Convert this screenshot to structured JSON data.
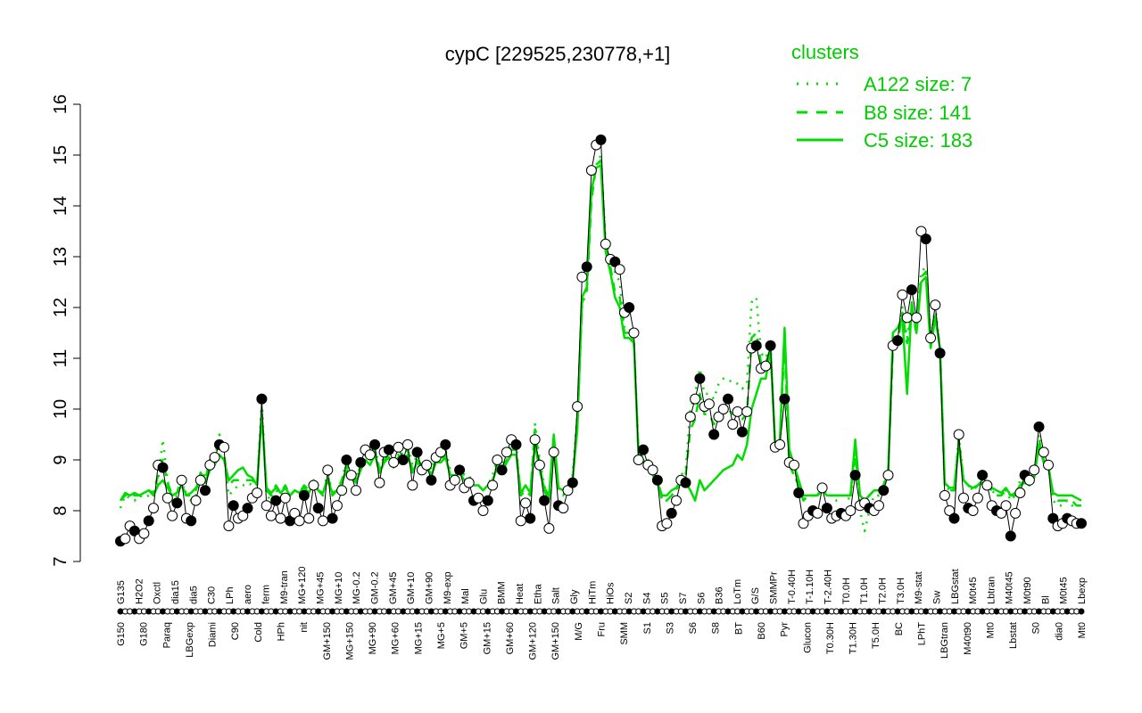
{
  "chart_data": {
    "type": "line",
    "title": "cypC [229525,230778,+1]",
    "xlabel": "",
    "ylabel": "",
    "ylim": [
      7,
      16
    ],
    "y_ticks": [
      7,
      8,
      9,
      10,
      11,
      12,
      13,
      14,
      15,
      16
    ],
    "grid": false,
    "legend_placement": "top-right",
    "legend": {
      "title": "clusters",
      "items": [
        {
          "label": "A122 size: 7",
          "style": "dotted"
        },
        {
          "label": "B8 size: 141",
          "style": "dashed"
        },
        {
          "label": "C5 size: 183",
          "style": "solid"
        }
      ]
    },
    "colors": {
      "clusters": "#00dd00",
      "gene": "#000000",
      "point_fill_open": "#ffffff",
      "point_fill_filled": "#000000"
    },
    "x_tick_labels_top_row": [
      "G135",
      "H2O2",
      "Oxctl",
      "dia15",
      "dia5",
      "C30",
      "LPh",
      "aero",
      "ferm",
      "M9-tran",
      "MG+120",
      "MG+45",
      "MG+10",
      "MG-0.2",
      "GM-0.2",
      "GM+45",
      "GM+10",
      "GM+90",
      "M9-exp",
      "Mal",
      "Glu",
      "BMM",
      "Heat",
      "Etha",
      "Salt",
      "Gly",
      "HiTm",
      "HiOs",
      "S2",
      "S4",
      "S5",
      "S7",
      "S6",
      "B36",
      "LoTm",
      "G/S",
      "SMMPr",
      "T-0.40H",
      "T-1.10H",
      "T-2.40H",
      "T0.0H",
      "T1.0H",
      "T2.0H",
      "T3.0H",
      "M9-stat",
      "Sw",
      "LBGstat",
      "M0t45",
      "Lbtran",
      "M40t45",
      "M0t90",
      "Bl",
      "M0t45",
      "Lbexp"
    ],
    "x_tick_labels_bottom_row": [
      "G150",
      "G180",
      "Paraq",
      "LBGexp",
      "Diami",
      "C90",
      "Cold",
      "HPh",
      "nit",
      "GM+150",
      "MG+150",
      "MG+90",
      "MG+60",
      "MG+15",
      "MG+5",
      "GM+5",
      "GM+15",
      "GM+60",
      "GM+120",
      "GM+150",
      "M/G",
      "Fru",
      "SMM",
      "S1",
      "S3",
      "S6",
      "S8",
      "BT",
      "B60",
      "Pyr",
      "Glucon",
      "T0.30H",
      "T1.30H",
      "T5.0H",
      "BC",
      "LPhT",
      "LBGtran",
      "M40t90",
      "Mt0",
      "Lbstat",
      "S0",
      "dia0",
      "Mt0"
    ],
    "series": [
      {
        "name": "cypC",
        "values": [
          7.4,
          7.45,
          7.7,
          7.6,
          7.45,
          7.55,
          7.8,
          8.05,
          8.9,
          8.85,
          8.25,
          7.9,
          8.15,
          8.6,
          7.85,
          7.8,
          8.2,
          8.6,
          8.4,
          8.9,
          9.05,
          9.3,
          9.25,
          7.7,
          8.1,
          7.85,
          7.9,
          8.05,
          8.25,
          8.35,
          10.2,
          8.1,
          7.9,
          8.2,
          7.85,
          8.25,
          7.8,
          7.95,
          7.8,
          8.3,
          7.85,
          8.5,
          8.05,
          7.8,
          8.8,
          7.85,
          8.1,
          8.4,
          9.0,
          8.7,
          8.4,
          8.95,
          9.2,
          9.1,
          9.3,
          8.55,
          9.15,
          9.2,
          8.95,
          9.25,
          9.0,
          9.3,
          8.5,
          9.15,
          8.8,
          8.9,
          8.6,
          9.05,
          9.15,
          9.3,
          8.5,
          8.6,
          8.8,
          8.45,
          8.55,
          8.2,
          8.25,
          8.0,
          8.2,
          8.5,
          9.0,
          8.8,
          9.15,
          9.4,
          9.3,
          7.8,
          8.15,
          7.85,
          9.4,
          8.9,
          8.2,
          7.65,
          9.15,
          8.1,
          8.05,
          8.4,
          8.55,
          10.05,
          12.6,
          12.8,
          14.7,
          15.2,
          15.3,
          13.25,
          12.95,
          12.9,
          12.75,
          11.9,
          12.0,
          11.5,
          9.0,
          9.2,
          8.9,
          8.8,
          8.6,
          7.7,
          7.75,
          7.95,
          8.2,
          8.6,
          8.55,
          9.85,
          10.2,
          10.6,
          10.05,
          10.1,
          9.5,
          9.85,
          10.0,
          10.2,
          9.7,
          9.95,
          9.55,
          9.95,
          11.2,
          11.25,
          10.8,
          10.85,
          11.25,
          9.25,
          9.3,
          10.2,
          8.95,
          8.9,
          8.35,
          7.75,
          7.9,
          8.0,
          7.95,
          8.45,
          8.05,
          7.85,
          7.9,
          7.95,
          7.9,
          8.0,
          8.7,
          8.1,
          8.15,
          8.05,
          8.0,
          8.1,
          8.4,
          8.7,
          11.25,
          11.35,
          12.25,
          11.8,
          12.35,
          11.8,
          13.5,
          13.35,
          11.4,
          12.05,
          11.1,
          8.3,
          8.0,
          7.85,
          9.5,
          8.25,
          8.05,
          8.0,
          8.25,
          8.7,
          8.5,
          8.1,
          8.0,
          7.95,
          8.1,
          7.5,
          7.95,
          8.35,
          8.7,
          8.6,
          8.8,
          9.65,
          9.15,
          8.9,
          7.85,
          7.7,
          7.75,
          7.85,
          7.8,
          7.75,
          7.75
        ]
      },
      {
        "name": "A122 size: 7",
        "values": [
          8.05,
          8.3,
          8.25,
          8.2,
          8.3,
          8.25,
          8.3,
          8.35,
          8.6,
          9.4,
          8.6,
          8.2,
          8.3,
          8.6,
          8.25,
          8.2,
          8.3,
          8.7,
          8.7,
          9.0,
          9.0,
          9.5,
          9.1,
          8.3,
          8.4,
          8.5,
          8.5,
          8.55,
          8.5,
          8.4,
          10.2,
          8.3,
          8.2,
          8.4,
          8.3,
          8.45,
          8.3,
          8.4,
          8.35,
          8.5,
          8.4,
          8.6,
          8.4,
          8.3,
          8.8,
          8.3,
          8.4,
          8.6,
          9.0,
          8.8,
          8.6,
          9.0,
          9.2,
          9.1,
          9.3,
          8.8,
          9.1,
          9.2,
          9.0,
          9.2,
          9.1,
          9.3,
          8.9,
          9.1,
          8.9,
          9.0,
          8.8,
          9.1,
          9.1,
          9.2,
          8.8,
          8.8,
          8.9,
          8.7,
          8.7,
          8.5,
          8.5,
          8.4,
          8.5,
          8.7,
          9.0,
          8.9,
          9.1,
          9.3,
          9.3,
          8.3,
          8.5,
          8.3,
          9.7,
          9.0,
          8.5,
          8.2,
          9.2,
          8.4,
          8.4,
          8.5,
          8.7,
          9.9,
          12.0,
          12.4,
          14.2,
          14.8,
          15.0,
          13.3,
          13.0,
          12.7,
          12.5,
          11.6,
          11.6,
          11.3,
          9.2,
          9.2,
          9.0,
          8.9,
          8.7,
          8.2,
          8.2,
          8.3,
          8.4,
          8.7,
          8.8,
          10.0,
          10.3,
          10.8,
          10.3,
          10.3,
          10.2,
          10.5,
          10.6,
          10.6,
          10.5,
          10.5,
          10.4,
          10.5,
          12.1,
          12.2,
          11.1,
          11.0,
          11.3,
          9.3,
          9.4,
          11.5,
          8.9,
          8.7,
          8.5,
          8.2,
          8.3,
          8.3,
          8.3,
          8.5,
          8.3,
          8.3,
          8.2,
          8.3,
          8.3,
          8.2,
          9.2,
          8.0,
          7.6,
          8.0,
          8.3,
          8.3,
          8.5,
          8.8,
          11.2,
          11.3,
          12.0,
          11.4,
          12.0,
          11.5,
          12.7,
          12.8,
          11.4,
          12.0,
          11.2,
          8.5,
          8.4,
          8.4,
          9.5,
          8.6,
          8.5,
          8.4,
          8.5,
          8.6,
          8.5,
          8.4,
          8.3,
          8.3,
          8.4,
          8.2,
          8.3,
          8.6,
          8.6,
          8.5,
          8.7,
          9.5,
          9.0,
          8.9,
          8.2,
          8.1,
          8.1,
          8.2,
          8.1,
          8.1,
          8.1
        ]
      },
      {
        "name": "B8 size: 141",
        "values": [
          8.2,
          8.3,
          8.35,
          8.3,
          8.3,
          8.35,
          8.4,
          8.35,
          8.7,
          9.0,
          8.55,
          8.3,
          8.35,
          8.65,
          8.3,
          8.3,
          8.4,
          8.75,
          8.6,
          9.0,
          9.1,
          9.3,
          9.1,
          8.5,
          8.6,
          8.6,
          8.6,
          8.6,
          8.6,
          8.5,
          9.9,
          8.4,
          8.3,
          8.5,
          8.35,
          8.5,
          8.3,
          8.4,
          8.35,
          8.5,
          8.4,
          8.6,
          8.4,
          8.3,
          8.7,
          8.3,
          8.4,
          8.6,
          8.9,
          8.7,
          8.6,
          8.9,
          9.1,
          9.0,
          9.2,
          8.8,
          9.0,
          9.1,
          8.9,
          9.1,
          9.0,
          9.2,
          8.8,
          9.0,
          8.9,
          8.9,
          8.7,
          9.0,
          9.0,
          9.1,
          8.7,
          8.7,
          8.8,
          8.6,
          8.6,
          8.5,
          8.5,
          8.4,
          8.5,
          8.6,
          8.9,
          8.8,
          9.0,
          9.2,
          9.2,
          8.3,
          8.4,
          8.3,
          9.6,
          8.9,
          8.4,
          8.2,
          9.2,
          8.4,
          8.3,
          8.5,
          8.6,
          9.7,
          12.1,
          12.3,
          14.1,
          14.8,
          14.9,
          13.2,
          12.8,
          12.3,
          12.2,
          11.5,
          11.5,
          11.3,
          9.1,
          9.1,
          8.9,
          8.8,
          8.6,
          8.2,
          8.2,
          8.3,
          8.4,
          8.6,
          8.7,
          9.6,
          9.8,
          10.3,
          9.9,
          9.9,
          9.7,
          9.9,
          10.0,
          10.0,
          9.9,
          9.9,
          9.8,
          9.9,
          11.4,
          11.5,
          10.9,
          10.9,
          11.2,
          9.3,
          9.4,
          11.3,
          8.9,
          8.7,
          8.5,
          8.2,
          8.3,
          8.3,
          8.3,
          8.5,
          8.3,
          8.3,
          8.3,
          8.3,
          8.3,
          8.3,
          9.1,
          8.3,
          8.2,
          8.3,
          8.4,
          8.4,
          8.5,
          8.8,
          11.2,
          11.3,
          11.9,
          11.3,
          11.9,
          11.5,
          12.6,
          12.7,
          11.3,
          11.9,
          11.2,
          8.5,
          8.4,
          8.4,
          9.4,
          8.6,
          8.5,
          8.4,
          8.5,
          8.6,
          8.5,
          8.4,
          8.3,
          8.3,
          8.4,
          8.3,
          8.3,
          8.5,
          8.6,
          8.5,
          8.7,
          9.4,
          9.0,
          8.9,
          8.3,
          8.2,
          8.2,
          8.2,
          8.2,
          8.1,
          8.1
        ]
      },
      {
        "name": "C5 size: 183",
        "values": [
          8.2,
          8.35,
          8.3,
          8.35,
          8.3,
          8.35,
          8.4,
          8.3,
          8.5,
          8.6,
          8.45,
          8.3,
          8.35,
          8.5,
          8.3,
          8.35,
          8.45,
          8.6,
          8.55,
          8.8,
          8.9,
          9.1,
          9.0,
          8.6,
          8.7,
          8.8,
          8.85,
          8.7,
          8.65,
          8.5,
          9.9,
          8.45,
          8.35,
          8.45,
          8.35,
          8.45,
          8.3,
          8.4,
          8.35,
          8.45,
          8.35,
          8.55,
          8.4,
          8.35,
          8.6,
          8.35,
          8.4,
          8.55,
          8.8,
          8.65,
          8.55,
          8.8,
          9.0,
          8.9,
          9.1,
          8.75,
          8.95,
          9.05,
          8.85,
          9.05,
          8.95,
          9.1,
          8.75,
          8.95,
          8.85,
          8.85,
          8.7,
          8.95,
          8.95,
          9.05,
          8.7,
          8.7,
          8.75,
          8.6,
          8.6,
          8.5,
          8.5,
          8.4,
          8.5,
          8.6,
          8.85,
          8.75,
          8.95,
          9.1,
          9.1,
          8.35,
          8.5,
          8.35,
          9.3,
          8.8,
          8.45,
          8.3,
          9.5,
          8.45,
          8.4,
          8.5,
          8.6,
          9.6,
          12.2,
          12.4,
          14.3,
          14.75,
          14.8,
          13.1,
          12.7,
          12.2,
          12.0,
          11.4,
          11.4,
          11.3,
          9.1,
          9.0,
          8.85,
          8.7,
          8.55,
          8.3,
          8.3,
          8.4,
          8.45,
          8.6,
          8.55,
          8.4,
          8.2,
          8.6,
          8.4,
          8.5,
          8.6,
          8.7,
          8.8,
          8.85,
          8.9,
          9.1,
          9.0,
          9.3,
          10.0,
          10.3,
          10.6,
          10.6,
          11.2,
          9.3,
          9.4,
          11.6,
          9.2,
          8.9,
          8.6,
          8.3,
          8.3,
          8.3,
          8.3,
          8.4,
          8.3,
          8.3,
          8.3,
          8.3,
          8.3,
          8.3,
          9.4,
          8.3,
          8.2,
          8.3,
          8.4,
          8.4,
          8.5,
          8.7,
          11.5,
          11.6,
          11.8,
          10.3,
          12.1,
          11.5,
          12.5,
          12.6,
          11.2,
          11.8,
          11.2,
          8.55,
          8.45,
          8.45,
          9.3,
          8.6,
          8.5,
          8.45,
          8.5,
          8.55,
          8.5,
          8.45,
          8.4,
          8.35,
          8.45,
          8.3,
          8.35,
          8.5,
          8.55,
          8.5,
          8.65,
          9.3,
          8.95,
          8.85,
          8.35,
          8.3,
          8.3,
          8.3,
          8.3,
          8.25,
          8.2
        ]
      }
    ]
  }
}
